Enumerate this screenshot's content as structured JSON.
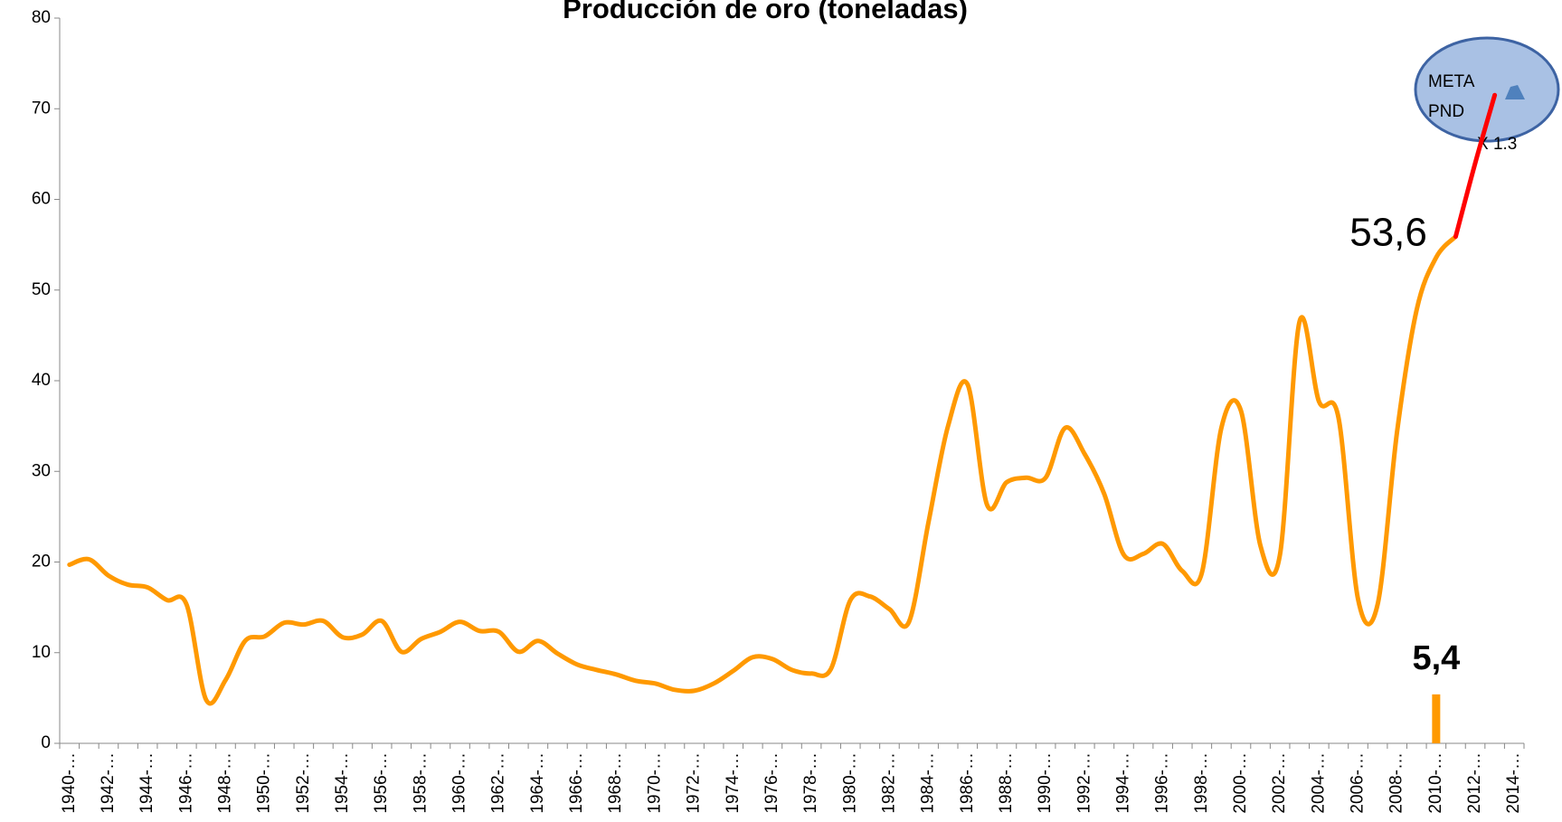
{
  "chart_data": {
    "type": "line",
    "title": "Producción de oro (toneladas)",
    "categories": [
      "1940-…",
      null,
      "1942-…",
      null,
      "1944-…",
      null,
      "1946-…",
      null,
      "1948-…",
      null,
      "1950-…",
      null,
      "1952-…",
      null,
      "1954-…",
      null,
      "1956-…",
      null,
      "1958-…",
      null,
      "1960-…",
      null,
      "1962-…",
      null,
      "1964-…",
      null,
      "1966-…",
      null,
      "1968-…",
      null,
      "1970-…",
      null,
      "1972-…",
      null,
      "1974-…",
      null,
      "1976-…",
      null,
      "1978-…",
      null,
      "1980-…",
      null,
      "1982-…",
      null,
      "1984-…",
      null,
      "1986-…",
      null,
      "1988-…",
      null,
      "1990-…",
      null,
      "1992-…",
      null,
      "1994-…",
      null,
      "1996-…",
      null,
      "1998-…",
      null,
      "2000-…",
      null,
      "2002-…",
      null,
      "2004-…",
      null,
      "2006-…",
      null,
      "2008-…",
      null,
      "2010-…",
      null,
      "2012-…",
      null,
      "2014-…"
    ],
    "series": [
      {
        "type": "line",
        "color": "#ff9900",
        "width": 5,
        "values": [
          19.7,
          20.3,
          18.5,
          17.5,
          17.2,
          15.8,
          15.3,
          4.8,
          7,
          11.3,
          11.8,
          13.3,
          13.1,
          13.5,
          11.7,
          12,
          13.5,
          10.1,
          11.5,
          12.3,
          13.4,
          12.4,
          12.3,
          10.1,
          11.3,
          9.9,
          8.7,
          8.1,
          7.6,
          6.9,
          6.6,
          5.9,
          5.8,
          6.6,
          8,
          9.5,
          9.3,
          8.1,
          7.7,
          8.2,
          15.8,
          16.2,
          14.8,
          13.4,
          24.4,
          35,
          39.6,
          26.3,
          28.8,
          29.3,
          29.3,
          34.8,
          31.9,
          27.5,
          20.8,
          20.9,
          22,
          19,
          18.8,
          34.8,
          36.7,
          21.8,
          20.8,
          46.5,
          37.7,
          35.9,
          15.9,
          15.3,
          34.4,
          47.8,
          53.6,
          55.9,
          null,
          null,
          null
        ],
        "value_labels": [
          null,
          null,
          null,
          null,
          null,
          null,
          null,
          null,
          null,
          null,
          null,
          null,
          null,
          null,
          null,
          null,
          null,
          null,
          null,
          null,
          null,
          null,
          null,
          null,
          null,
          null,
          null,
          null,
          null,
          null,
          null,
          null,
          null,
          null,
          null,
          null,
          null,
          null,
          null,
          null,
          null,
          null,
          null,
          null,
          null,
          null,
          null,
          null,
          null,
          null,
          null,
          null,
          null,
          null,
          null,
          null,
          null,
          null,
          null,
          null,
          null,
          null,
          null,
          null,
          null,
          null,
          null,
          null,
          null,
          null,
          "53,6",
          null,
          null,
          null,
          null
        ]
      },
      {
        "type": "line",
        "color": "#ff0000",
        "width": 5,
        "values": [
          null,
          null,
          null,
          null,
          null,
          null,
          null,
          null,
          null,
          null,
          null,
          null,
          null,
          null,
          null,
          null,
          null,
          null,
          null,
          null,
          null,
          null,
          null,
          null,
          null,
          null,
          null,
          null,
          null,
          null,
          null,
          null,
          null,
          null,
          null,
          null,
          null,
          null,
          null,
          null,
          null,
          null,
          null,
          null,
          null,
          null,
          null,
          null,
          null,
          null,
          null,
          null,
          null,
          null,
          null,
          null,
          null,
          null,
          null,
          null,
          null,
          null,
          null,
          null,
          null,
          null,
          null,
          null,
          null,
          null,
          null,
          55.9,
          64,
          71.5,
          null
        ]
      },
      {
        "type": "bar",
        "color": "#ff9900",
        "values": [
          null,
          null,
          null,
          null,
          null,
          null,
          null,
          null,
          null,
          null,
          null,
          null,
          null,
          null,
          null,
          null,
          null,
          null,
          null,
          null,
          null,
          null,
          null,
          null,
          null,
          null,
          null,
          null,
          null,
          null,
          null,
          null,
          null,
          null,
          null,
          null,
          null,
          null,
          null,
          null,
          null,
          null,
          null,
          null,
          null,
          null,
          null,
          null,
          null,
          null,
          null,
          null,
          null,
          null,
          null,
          null,
          null,
          null,
          null,
          null,
          null,
          null,
          null,
          null,
          null,
          null,
          null,
          null,
          null,
          null,
          5.4,
          null,
          null,
          null,
          null
        ],
        "value_labels": [
          null,
          null,
          null,
          null,
          null,
          null,
          null,
          null,
          null,
          null,
          null,
          null,
          null,
          null,
          null,
          null,
          null,
          null,
          null,
          null,
          null,
          null,
          null,
          null,
          null,
          null,
          null,
          null,
          null,
          null,
          null,
          null,
          null,
          null,
          null,
          null,
          null,
          null,
          null,
          null,
          null,
          null,
          null,
          null,
          null,
          null,
          null,
          null,
          null,
          null,
          null,
          null,
          null,
          null,
          null,
          null,
          null,
          null,
          null,
          null,
          null,
          null,
          null,
          null,
          null,
          null,
          null,
          null,
          null,
          null,
          "5,4",
          null,
          null,
          null,
          null
        ]
      }
    ],
    "ylim": [
      0,
      80
    ],
    "yticks": [
      0,
      10,
      20,
      30,
      40,
      50,
      60,
      70,
      80
    ],
    "annotations": [
      "META",
      "PND",
      "X 1.3"
    ]
  }
}
